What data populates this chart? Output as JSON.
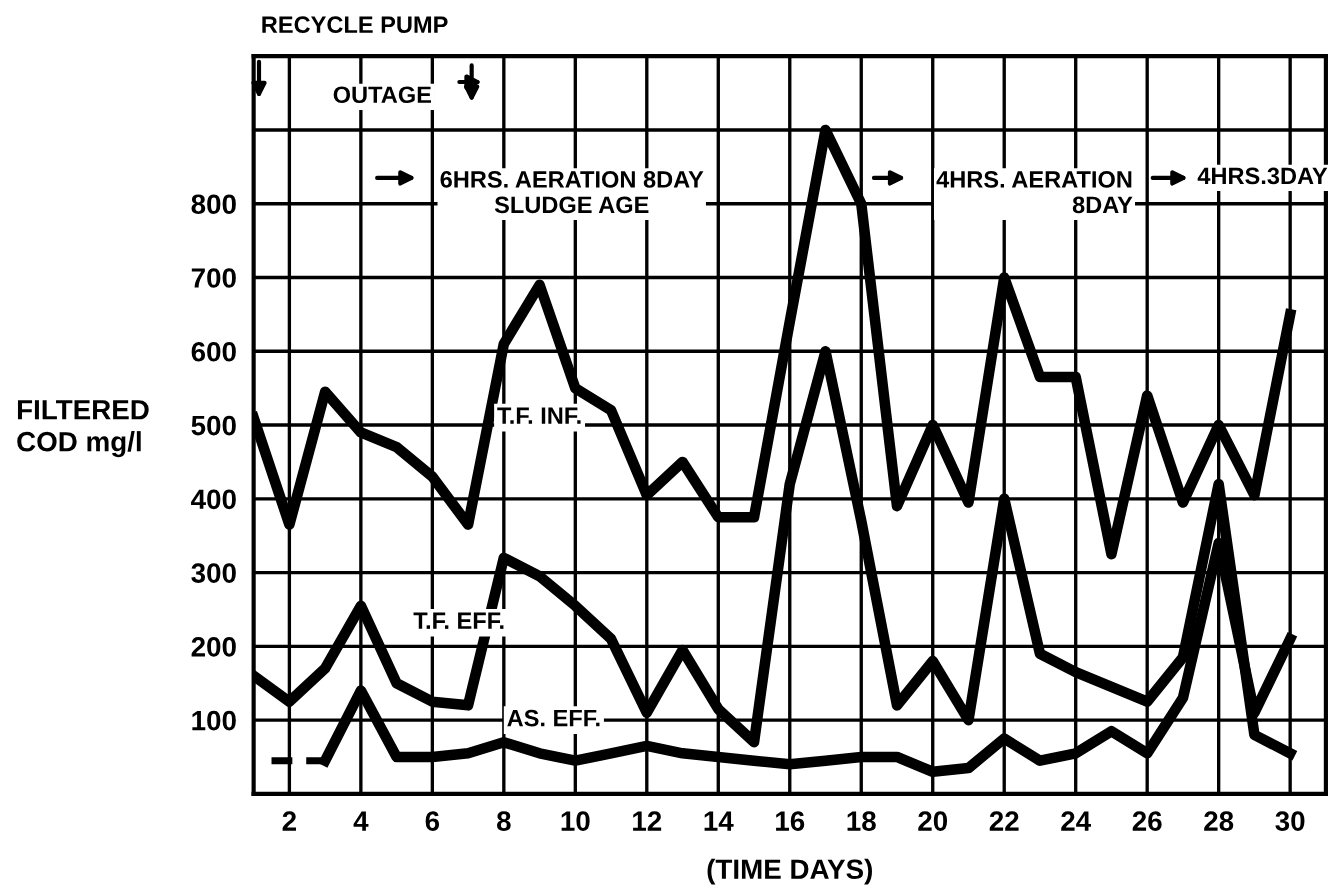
{
  "chart_data": {
    "type": "line",
    "xlabel": "(TIME DAYS)",
    "ylabel": "FILTERED\nCOD mg/l",
    "x": [
      1,
      2,
      3,
      4,
      5,
      6,
      7,
      8,
      9,
      10,
      11,
      12,
      13,
      14,
      15,
      16,
      17,
      18,
      19,
      20,
      21,
      22,
      23,
      24,
      25,
      26,
      27,
      28,
      29,
      30
    ],
    "series": [
      {
        "name": "T.F. INF.",
        "color": "#000000",
        "values": [
          510,
          365,
          545,
          490,
          470,
          430,
          365,
          610,
          690,
          550,
          520,
          405,
          450,
          375,
          375,
          640,
          900,
          800,
          390,
          500,
          395,
          700,
          565,
          565,
          325,
          540,
          395,
          500,
          405,
          650
        ]
      },
      {
        "name": "T.F. EFF.",
        "color": "#000000",
        "values": [
          160,
          125,
          170,
          255,
          150,
          125,
          120,
          320,
          295,
          255,
          210,
          110,
          195,
          115,
          70,
          420,
          600,
          370,
          120,
          180,
          100,
          400,
          190,
          165,
          145,
          125,
          185,
          420,
          80,
          55
        ]
      },
      {
        "name": "AS. EFF.",
        "color": "#000000",
        "values": [
          null,
          null,
          45,
          140,
          50,
          50,
          55,
          70,
          55,
          45,
          55,
          65,
          55,
          50,
          45,
          40,
          45,
          50,
          50,
          30,
          35,
          75,
          45,
          55,
          85,
          55,
          130,
          340,
          110,
          210
        ]
      },
      {
        "color": "#000000",
        "line_style": "dashed",
        "x": [
          1.5,
          3
        ],
        "values": [
          45,
          45
        ]
      }
    ],
    "annotations": [
      "RECYCLE PUMP",
      "OUTAGE",
      "6HRS. AERATION 8DAY\nSLUDGE AGE",
      "4HRS. AERATION\n8DAY",
      "4HRS.3DAY"
    ],
    "xlim": [
      1,
      31
    ],
    "ylim": [
      0,
      1000
    ],
    "xticks": [
      2,
      4,
      6,
      8,
      10,
      12,
      14,
      16,
      18,
      20,
      22,
      24,
      26,
      28,
      30
    ],
    "yticks": [
      100,
      200,
      300,
      400,
      500,
      600,
      700,
      800,
      {
        "value": 900,
        "label": null
      }
    ],
    "grid": true,
    "legend": false,
    "line_style": "solid"
  }
}
